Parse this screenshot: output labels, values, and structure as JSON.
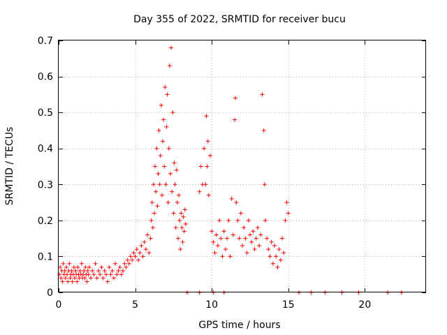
{
  "chart_data": {
    "type": "scatter",
    "title": "Day 355 of 2022, SRMTID for receiver bucu",
    "xlabel": "GPS time / hours",
    "ylabel": "SRMTID / TECUs",
    "xlim": [
      0,
      24
    ],
    "ylim": [
      0,
      0.7
    ],
    "xticks": [
      0,
      5,
      10,
      15,
      20
    ],
    "yticks": [
      0,
      0.1,
      0.2,
      0.3,
      0.4,
      0.5,
      0.6,
      0.7
    ],
    "xtick_labels": [
      "0",
      "5",
      "10",
      "15",
      "20"
    ],
    "ytick_labels": [
      "0",
      "0.1",
      "0.2",
      "0.3",
      "0.4",
      "0.5",
      "0.6",
      "0.7"
    ],
    "grid": true,
    "marker": "+",
    "color": "#ff0000",
    "series": [
      {
        "name": "SRMTID",
        "points": [
          [
            0.05,
            0.05
          ],
          [
            0.1,
            0.07
          ],
          [
            0.15,
            0.04
          ],
          [
            0.2,
            0.06
          ],
          [
            0.25,
            0.03
          ],
          [
            0.3,
            0.08
          ],
          [
            0.35,
            0.05
          ],
          [
            0.4,
            0.06
          ],
          [
            0.45,
            0.04
          ],
          [
            0.5,
            0.07
          ],
          [
            0.55,
            0.05
          ],
          [
            0.6,
            0.03
          ],
          [
            0.65,
            0.06
          ],
          [
            0.7,
            0.08
          ],
          [
            0.75,
            0.04
          ],
          [
            0.8,
            0.05
          ],
          [
            0.85,
            0.06
          ],
          [
            0.9,
            0.03
          ],
          [
            0.95,
            0.05
          ],
          [
            1.0,
            0.07
          ],
          [
            1.05,
            0.04
          ],
          [
            1.1,
            0.06
          ],
          [
            1.15,
            0.05
          ],
          [
            1.2,
            0.03
          ],
          [
            1.25,
            0.07
          ],
          [
            1.3,
            0.05
          ],
          [
            1.35,
            0.04
          ],
          [
            1.4,
            0.06
          ],
          [
            1.45,
            0.05
          ],
          [
            1.5,
            0.08
          ],
          [
            1.55,
            0.04
          ],
          [
            1.6,
            0.05
          ],
          [
            1.65,
            0.06
          ],
          [
            1.7,
            0.04
          ],
          [
            1.75,
            0.07
          ],
          [
            1.8,
            0.05
          ],
          [
            1.85,
            0.03
          ],
          [
            1.9,
            0.06
          ],
          [
            1.95,
            0.05
          ],
          [
            2.0,
            0.07
          ],
          [
            2.1,
            0.04
          ],
          [
            2.2,
            0.06
          ],
          [
            2.3,
            0.05
          ],
          [
            2.4,
            0.08
          ],
          [
            2.5,
            0.04
          ],
          [
            2.6,
            0.06
          ],
          [
            2.7,
            0.05
          ],
          [
            2.8,
            0.07
          ],
          [
            2.9,
            0.04
          ],
          [
            3.0,
            0.06
          ],
          [
            3.1,
            0.05
          ],
          [
            3.2,
            0.03
          ],
          [
            3.3,
            0.07
          ],
          [
            3.4,
            0.05
          ],
          [
            3.5,
            0.06
          ],
          [
            3.6,
            0.04
          ],
          [
            3.7,
            0.08
          ],
          [
            3.8,
            0.05
          ],
          [
            3.9,
            0.06
          ],
          [
            4.0,
            0.07
          ],
          [
            4.1,
            0.05
          ],
          [
            4.2,
            0.06
          ],
          [
            4.3,
            0.08
          ],
          [
            4.4,
            0.07
          ],
          [
            4.5,
            0.09
          ],
          [
            4.6,
            0.08
          ],
          [
            4.7,
            0.1
          ],
          [
            4.8,
            0.09
          ],
          [
            4.9,
            0.11
          ],
          [
            5.0,
            0.1
          ],
          [
            5.1,
            0.12
          ],
          [
            5.2,
            0.09
          ],
          [
            5.3,
            0.11
          ],
          [
            5.4,
            0.13
          ],
          [
            5.5,
            0.1
          ],
          [
            5.6,
            0.14
          ],
          [
            5.7,
            0.12
          ],
          [
            5.8,
            0.16
          ],
          [
            5.9,
            0.11
          ],
          [
            6.0,
            0.15
          ],
          [
            6.05,
            0.2
          ],
          [
            6.1,
            0.25
          ],
          [
            6.15,
            0.18
          ],
          [
            6.2,
            0.3
          ],
          [
            6.25,
            0.22
          ],
          [
            6.3,
            0.35
          ],
          [
            6.35,
            0.28
          ],
          [
            6.4,
            0.4
          ],
          [
            6.45,
            0.24
          ],
          [
            6.5,
            0.33
          ],
          [
            6.55,
            0.45
          ],
          [
            6.6,
            0.3
          ],
          [
            6.65,
            0.38
          ],
          [
            6.7,
            0.52
          ],
          [
            6.75,
            0.27
          ],
          [
            6.8,
            0.42
          ],
          [
            6.85,
            0.48
          ],
          [
            6.9,
            0.35
          ],
          [
            6.95,
            0.57
          ],
          [
            7.0,
            0.3
          ],
          [
            7.05,
            0.46
          ],
          [
            7.1,
            0.55
          ],
          [
            7.15,
            0.25
          ],
          [
            7.2,
            0.4
          ],
          [
            7.25,
            0.63
          ],
          [
            7.3,
            0.33
          ],
          [
            7.35,
            0.68
          ],
          [
            7.4,
            0.28
          ],
          [
            7.45,
            0.5
          ],
          [
            7.5,
            0.22
          ],
          [
            7.55,
            0.36
          ],
          [
            7.6,
            0.3
          ],
          [
            7.65,
            0.18
          ],
          [
            7.7,
            0.34
          ],
          [
            7.75,
            0.25
          ],
          [
            7.8,
            0.15
          ],
          [
            7.85,
            0.27
          ],
          [
            7.9,
            0.2
          ],
          [
            7.95,
            0.12
          ],
          [
            8.0,
            0.22
          ],
          [
            8.05,
            0.18
          ],
          [
            8.1,
            0.14
          ],
          [
            8.15,
            0.21
          ],
          [
            8.2,
            0.17
          ],
          [
            8.25,
            0.23
          ],
          [
            8.3,
            0.19
          ],
          [
            9.2,
            0.28
          ],
          [
            9.3,
            0.35
          ],
          [
            9.4,
            0.3
          ],
          [
            9.5,
            0.4
          ],
          [
            9.6,
            0.3
          ],
          [
            9.65,
            0.49
          ],
          [
            9.7,
            0.35
          ],
          [
            9.75,
            0.42
          ],
          [
            9.8,
            0.27
          ],
          [
            9.9,
            0.38
          ],
          [
            10.0,
            0.17
          ],
          [
            10.1,
            0.14
          ],
          [
            10.2,
            0.11
          ],
          [
            10.3,
            0.16
          ],
          [
            10.4,
            0.13
          ],
          [
            10.5,
            0.2
          ],
          [
            10.6,
            0.15
          ],
          [
            10.7,
            0.1
          ],
          [
            10.8,
            0.17
          ],
          [
            10.9,
            0.12
          ],
          [
            11.0,
            0.15
          ],
          [
            11.1,
            0.2
          ],
          [
            11.2,
            0.1
          ],
          [
            11.3,
            0.26
          ],
          [
            11.4,
            0.16
          ],
          [
            11.5,
            0.48
          ],
          [
            11.55,
            0.54
          ],
          [
            11.6,
            0.25
          ],
          [
            11.7,
            0.2
          ],
          [
            11.8,
            0.15
          ],
          [
            11.9,
            0.22
          ],
          [
            12.0,
            0.13
          ],
          [
            12.1,
            0.18
          ],
          [
            12.2,
            0.15
          ],
          [
            12.3,
            0.11
          ],
          [
            12.4,
            0.2
          ],
          [
            12.5,
            0.16
          ],
          [
            12.6,
            0.14
          ],
          [
            12.7,
            0.17
          ],
          [
            12.8,
            0.12
          ],
          [
            12.9,
            0.15
          ],
          [
            13.0,
            0.18
          ],
          [
            13.1,
            0.13
          ],
          [
            13.2,
            0.16
          ],
          [
            13.3,
            0.55
          ],
          [
            13.4,
            0.45
          ],
          [
            13.45,
            0.3
          ],
          [
            13.5,
            0.2
          ],
          [
            13.6,
            0.15
          ],
          [
            13.7,
            0.12
          ],
          [
            13.8,
            0.1
          ],
          [
            13.9,
            0.14
          ],
          [
            14.0,
            0.08
          ],
          [
            14.1,
            0.13
          ],
          [
            14.2,
            0.1
          ],
          [
            14.3,
            0.07
          ],
          [
            14.4,
            0.12
          ],
          [
            14.5,
            0.09
          ],
          [
            14.6,
            0.15
          ],
          [
            14.7,
            0.11
          ],
          [
            14.8,
            0.2
          ],
          [
            14.9,
            0.25
          ],
          [
            15.0,
            0.22
          ],
          [
            8.4,
            0.0
          ],
          [
            9.2,
            0.0
          ],
          [
            10.1,
            0.0
          ],
          [
            10.8,
            0.0
          ],
          [
            15.7,
            0.0
          ],
          [
            16.5,
            0.0
          ],
          [
            17.4,
            0.0
          ],
          [
            18.5,
            0.0
          ],
          [
            19.6,
            0.0
          ],
          [
            21.5,
            0.0
          ],
          [
            22.4,
            0.0
          ]
        ]
      }
    ]
  }
}
